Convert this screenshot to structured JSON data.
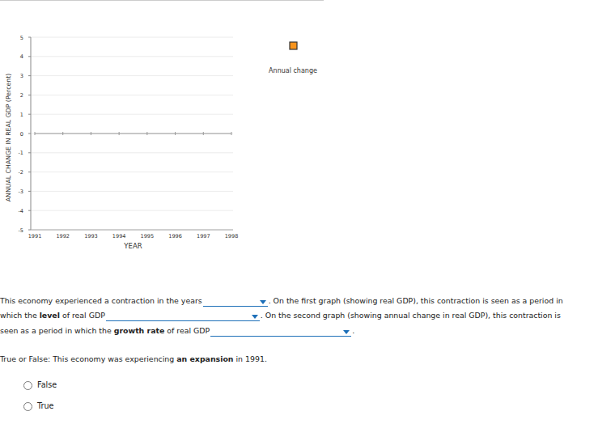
{
  "chart_data": {
    "type": "line",
    "x_label": "YEAR",
    "y_label": "ANNUAL CHANGE IN REAL GDP (Percent)",
    "categories": [
      1991,
      1992,
      1993,
      1994,
      1995,
      1996,
      1997,
      1998
    ],
    "series": [
      {
        "name": "Annual change",
        "color": "#f7941d",
        "marker": "square",
        "values": [
          null,
          null,
          null,
          null,
          null,
          null,
          null,
          null
        ]
      }
    ],
    "ylim": [
      -5,
      5
    ],
    "yticks": [
      -5,
      -4,
      -3,
      -2,
      -1,
      0,
      1,
      2,
      3,
      4,
      5
    ],
    "grid": true,
    "legend": "top-right"
  },
  "page": {
    "lines": [
      {
        "segments": [
          {
            "text": "This economy experienced a contraction in the years",
            "bold": false
          },
          {
            "dropdown": 80
          },
          {
            "text": ". On the first graph (showing real GDP), this contraction is seen as a period in",
            "bold": false
          }
        ]
      },
      {
        "segments": [
          {
            "text": "which the ",
            "bold": false
          },
          {
            "text": "level",
            "bold": true
          },
          {
            "text": " of real GDP",
            "bold": false
          },
          {
            "dropdown": 190
          },
          {
            "text": ". On the second graph (showing annual change in real GDP), this contraction is",
            "bold": false
          }
        ]
      },
      {
        "segments": [
          {
            "text": "seen as a period in which the ",
            "bold": false
          },
          {
            "text": "growth rate",
            "bold": true
          },
          {
            "text": " of real GDP",
            "bold": false
          },
          {
            "dropdown": 174
          },
          {
            "text": ".",
            "bold": false
          }
        ]
      },
      {
        "segments": [
          {
            "text": "True or False: This economy was experiencing ",
            "bold": false
          },
          {
            "text": "an expansion",
            "bold": true
          },
          {
            "text": " in 1991.",
            "bold": false
          }
        ]
      }
    ],
    "options": [
      "False",
      "True"
    ]
  }
}
